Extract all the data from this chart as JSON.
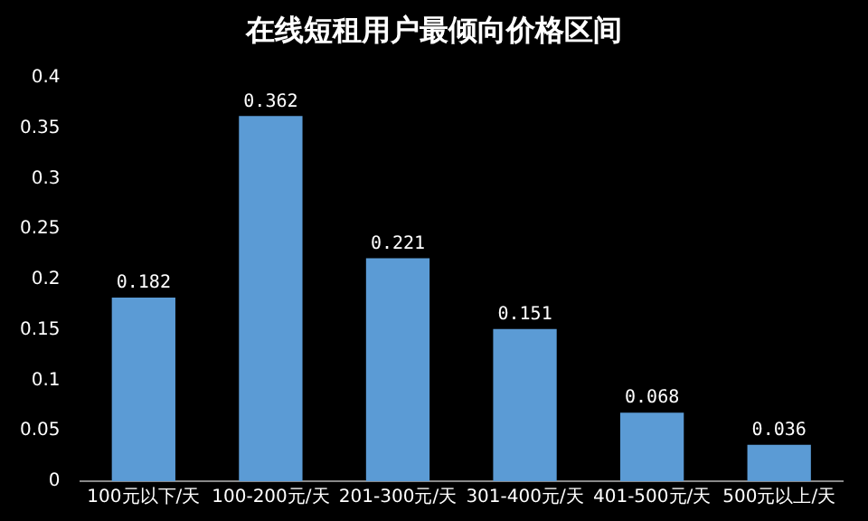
{
  "chart_data": {
    "type": "bar",
    "title": "在线短租用户最倾向价格区间",
    "categories": [
      "100元以下/天",
      "100-200元/天",
      "201-300元/天",
      "301-400元/天",
      "401-500元/天",
      "500元以上/天"
    ],
    "values": [
      0.182,
      0.362,
      0.221,
      0.151,
      0.068,
      0.036
    ],
    "color": "#5b9bd5",
    "ylim": [
      0,
      0.4
    ],
    "yticks": [
      0,
      0.05,
      0.1,
      0.15,
      0.2,
      0.25,
      0.3,
      0.35,
      0.4
    ],
    "grid": false,
    "legend": false,
    "data_labels": true
  }
}
